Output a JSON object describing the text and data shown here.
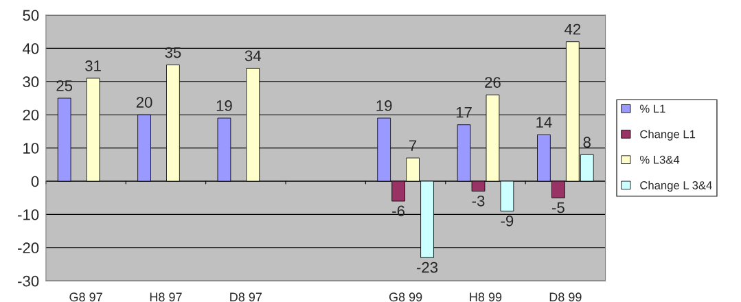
{
  "chart_data": {
    "type": "bar",
    "categories": [
      "G8 97",
      "H8 97",
      "D8 97",
      null,
      "G8 99",
      "H8 99",
      "D8 99"
    ],
    "series": [
      {
        "name": "% L1",
        "color": "#9999ff",
        "values": [
          25,
          20,
          19,
          null,
          19,
          17,
          14
        ]
      },
      {
        "name": "Change L1",
        "color": "#993366",
        "values": [
          null,
          null,
          null,
          null,
          -6,
          -3,
          -5
        ]
      },
      {
        "name": "% L3&4",
        "color": "#ffffcc",
        "values": [
          31,
          35,
          34,
          null,
          7,
          26,
          42
        ]
      },
      {
        "name": "Change L 3&4",
        "color": "#ccffff",
        "values": [
          null,
          null,
          null,
          null,
          -23,
          -9,
          8
        ]
      }
    ],
    "ylim": [
      -30,
      50
    ],
    "yticks": [
      -30,
      -20,
      -10,
      0,
      10,
      20,
      30,
      40,
      50
    ],
    "grid": "y",
    "legend": "right",
    "data_labels": true
  }
}
